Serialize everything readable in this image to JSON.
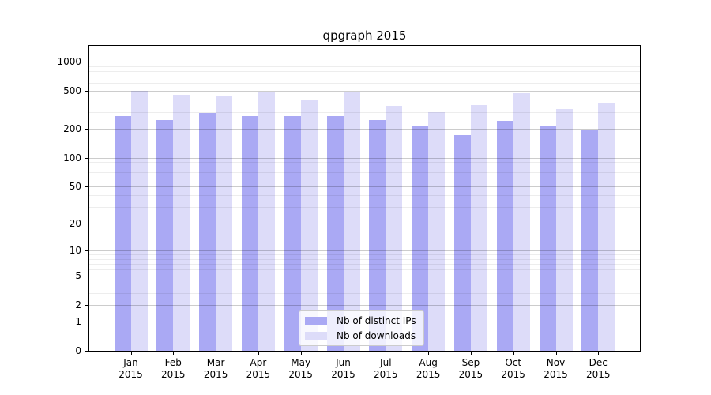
{
  "title": "qpgraph 2015",
  "colors": {
    "ips": "#aaa9f4",
    "downloads": "#dddcf9",
    "axis": "#000000",
    "grid_major": "#cccccc",
    "grid_minor": "#ececec",
    "legend_border": "#cccccc"
  },
  "legend": [
    {
      "key": "ips",
      "label": "Nb of distinct IPs"
    },
    {
      "key": "downloads",
      "label": "Nb of downloads"
    }
  ],
  "chart_data": {
    "type": "bar",
    "title": "qpgraph 2015",
    "yscale": "log1p",
    "xlabel": "",
    "ylabel": "",
    "year": "2015",
    "categories": [
      "Jan",
      "Feb",
      "Mar",
      "Apr",
      "May",
      "Jun",
      "Jul",
      "Aug",
      "Sep",
      "Oct",
      "Nov",
      "Dec"
    ],
    "series": [
      {
        "name": "Nb of distinct IPs",
        "values": [
          271,
          249,
          290,
          271,
          269,
          269,
          245,
          216,
          173,
          242,
          213,
          197
        ]
      },
      {
        "name": "Nb of downloads",
        "values": [
          493,
          454,
          435,
          487,
          404,
          482,
          346,
          296,
          353,
          474,
          321,
          369
        ]
      }
    ],
    "yticks": [
      0,
      1,
      2,
      5,
      10,
      20,
      50,
      100,
      200,
      500,
      1000
    ],
    "minor_yticks": [
      3,
      4,
      6,
      7,
      8,
      9,
      30,
      40,
      60,
      70,
      80,
      90,
      300,
      400,
      600,
      700,
      800,
      900
    ],
    "ylim": [
      0,
      1460
    ],
    "grid": "on",
    "legend_position": "lower-center-inside"
  }
}
